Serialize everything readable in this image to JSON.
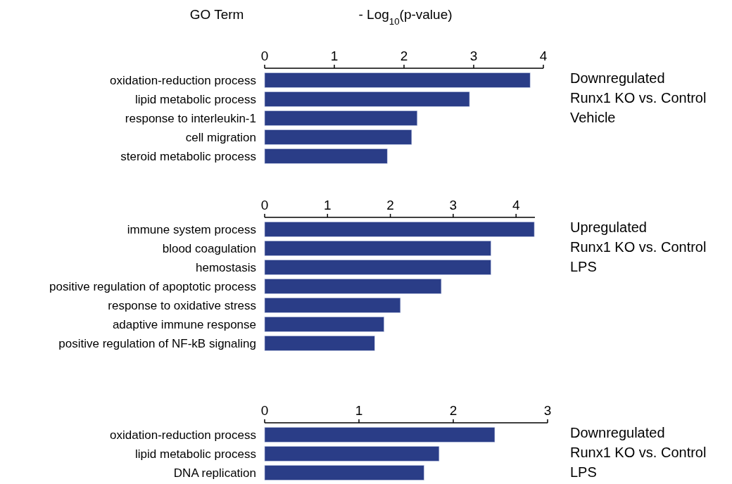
{
  "chart_data": [
    {
      "type": "bar",
      "orientation": "horizontal",
      "ylabel": "GO Term",
      "xlabel": "- Log$_{10}$(p-value)",
      "annotations": [
        "Downregulated\nRunx1 KO vs. Control\nVehicle"
      ],
      "categories": [
        "oxidation-reduction process",
        "lipid metabolic process",
        "response to interleukin-1",
        "cell migration",
        "steroid metabolic process"
      ],
      "values": [
        3.81,
        2.94,
        2.19,
        2.11,
        1.76
      ],
      "color": "#2a3d87",
      "xlim": [
        0,
        4
      ],
      "xticks": [
        0,
        1,
        2,
        3,
        4
      ]
    },
    {
      "type": "bar",
      "orientation": "horizontal",
      "annotations": [
        "Upregulated\nRunx1 KO vs. Control\nLPS"
      ],
      "categories": [
        "immune system process",
        "blood coagulation",
        "hemostasis",
        "positive regulation of apoptotic process",
        "response to oxidative stress",
        "adaptive immune response",
        "positive regulation of NF-kB signaling"
      ],
      "values": [
        4.29,
        3.6,
        3.6,
        2.81,
        2.16,
        1.9,
        1.75
      ],
      "color": "#2a3d87",
      "xlim": [
        0,
        4.3
      ],
      "xticks": [
        0,
        1,
        2,
        3,
        4
      ]
    },
    {
      "type": "bar",
      "orientation": "horizontal",
      "annotations": [
        "Downregulated\nRunx1 KO vs. Control\nLPS"
      ],
      "categories": [
        "oxidation-reduction process",
        "lipid metabolic process",
        "DNA replication"
      ],
      "values": [
        2.44,
        1.85,
        1.69
      ],
      "color": "#2a3d87",
      "xlim": [
        0,
        3
      ],
      "xticks": [
        0,
        1,
        2,
        3
      ]
    }
  ]
}
